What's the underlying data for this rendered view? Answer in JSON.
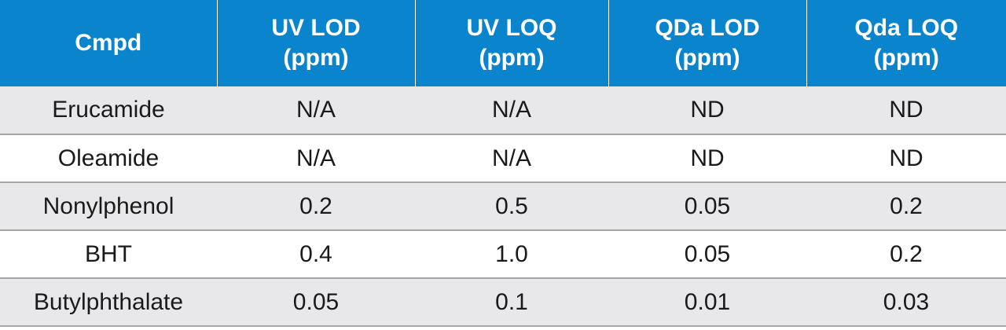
{
  "header": {
    "cmpd": "Cmpd",
    "uv_lod": [
      "UV LOD",
      "(ppm)"
    ],
    "uv_loq": [
      "UV LOQ",
      "(ppm)"
    ],
    "qda_lod": [
      "QDa LOD",
      "(ppm)"
    ],
    "qda_loq": [
      "Qda LOQ",
      "(ppm)"
    ]
  },
  "rows": [
    [
      "Erucamide",
      "N/A",
      "N/A",
      "ND",
      "ND"
    ],
    [
      "Oleamide",
      "N/A",
      "N/A",
      "ND",
      "ND"
    ],
    [
      "Nonylphenol",
      "0.2",
      "0.5",
      "0.05",
      "0.2"
    ],
    [
      "BHT",
      "0.4",
      "1.0",
      "0.05",
      "0.2"
    ],
    [
      "Butylphthalate",
      "0.05",
      "0.1",
      "0.01",
      "0.03"
    ]
  ],
  "colors": {
    "header_bg": "#0a84cc",
    "header_text": "#ffffff",
    "row_shade": "#e8e8ea",
    "row_divider": "#a6a6a6"
  }
}
